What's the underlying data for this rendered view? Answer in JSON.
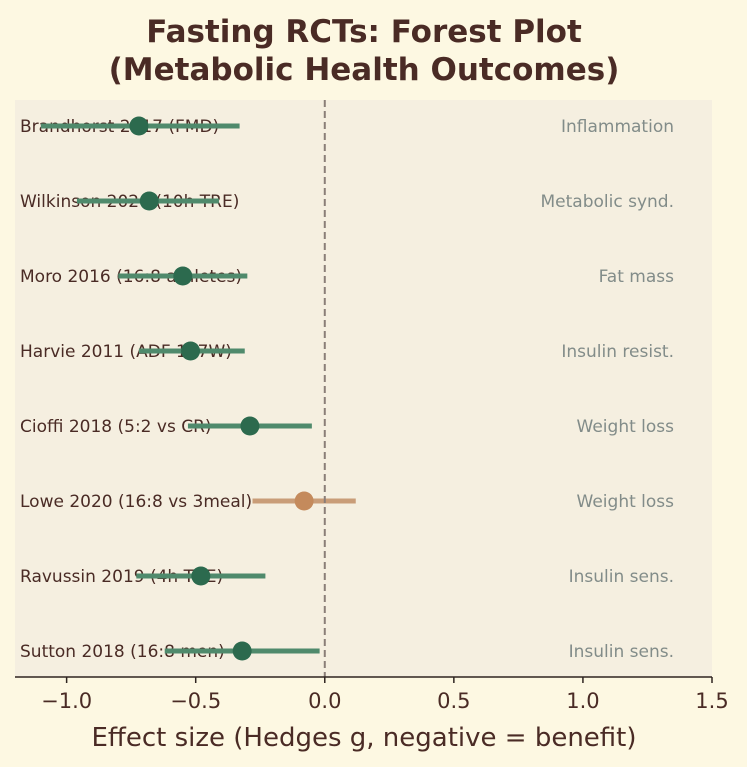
{
  "chart_data": {
    "type": "forest",
    "title": "Fasting RCTs: Forest Plot\n(Metabolic Health Outcomes)",
    "title_lines": [
      "Fasting RCTs: Forest Plot",
      "(Metabolic Health Outcomes)"
    ],
    "xlabel": "Effect size (Hedges g, negative = benefit)",
    "xlim": [
      -1.2,
      1.5
    ],
    "xticks": [
      -1.0,
      -0.5,
      0.0,
      0.5,
      1.0,
      1.5
    ],
    "xtick_labels": [
      "−1.0",
      "−0.5",
      "0.0",
      "0.5",
      "1.0",
      "1.5"
    ],
    "reference_line": 0,
    "grid": false,
    "studies": [
      {
        "label": "Brandhorst 2017 (FMD)",
        "outcome": "Inflammation",
        "g": -0.72,
        "ci": [
          -1.1,
          -0.33
        ],
        "significant": true
      },
      {
        "label": "Wilkinson 2020 (10h TRE)",
        "outcome": "Metabolic synd.",
        "g": -0.68,
        "ci": [
          -0.96,
          -0.41
        ],
        "significant": true
      },
      {
        "label": "Moro 2016 (16:8 athletes)",
        "outcome": "Fat mass",
        "g": -0.55,
        "ci": [
          -0.8,
          -0.3
        ],
        "significant": true
      },
      {
        "label": "Harvie 2011 (ADF 107W)",
        "outcome": "Insulin resist.",
        "g": -0.52,
        "ci": [
          -0.72,
          -0.31
        ],
        "significant": true
      },
      {
        "label": "Cioffi 2018 (5:2 vs CR)",
        "outcome": "Weight loss",
        "g": -0.29,
        "ci": [
          -0.53,
          -0.05
        ],
        "significant": true
      },
      {
        "label": "Lowe 2020 (16:8 vs 3meal)",
        "outcome": "Weight loss",
        "g": -0.08,
        "ci": [
          -0.28,
          0.12
        ],
        "significant": false
      },
      {
        "label": "Ravussin 2019 (4h TRE)",
        "outcome": "Insulin sens.",
        "g": -0.48,
        "ci": [
          -0.73,
          -0.23
        ],
        "significant": true
      },
      {
        "label": "Sutton 2018 (16:8 men)",
        "outcome": "Insulin sens.",
        "g": -0.32,
        "ci": [
          -0.62,
          -0.02
        ],
        "significant": true
      }
    ],
    "colors": {
      "significant_point": "#2c6a4e",
      "significant_ci": "#4f8a6c",
      "nonsignificant_point": "#c48a5c",
      "nonsignificant_ci": "#c99d78",
      "reference_line": "#8a7e78",
      "plot_background": "#f5efe0",
      "page_background": "#fdf8e2"
    }
  }
}
